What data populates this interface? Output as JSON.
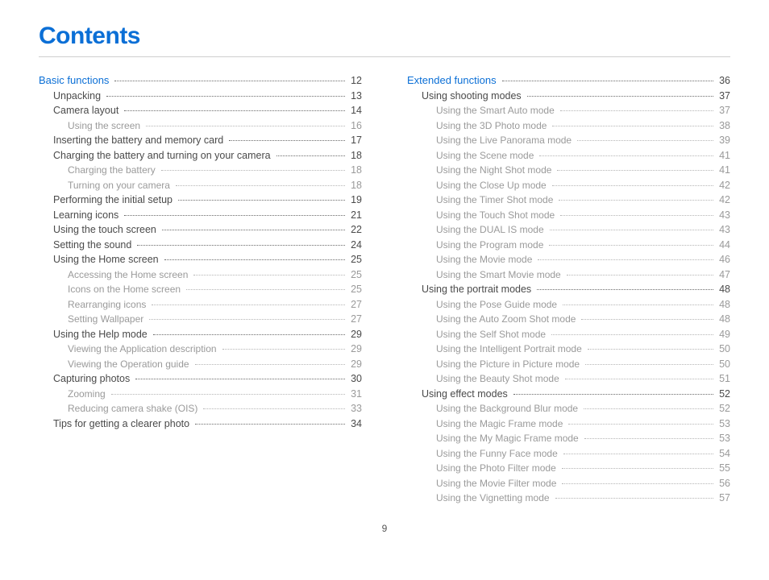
{
  "page": {
    "title": "Contents",
    "page_number": "9",
    "title_color": "#0b6fd6",
    "text_color": "#4a4a4a",
    "sub_color": "#9a9a9a"
  },
  "columns": [
    [
      {
        "label": "Basic functions",
        "page": "12",
        "level": 1
      },
      {
        "label": "Unpacking",
        "page": "13",
        "level": 2
      },
      {
        "label": "Camera layout",
        "page": "14",
        "level": 2
      },
      {
        "label": "Using the screen",
        "page": "16",
        "level": 3
      },
      {
        "label": "Inserting the battery and memory card",
        "page": "17",
        "level": 2
      },
      {
        "label": "Charging the battery and turning on your camera",
        "page": "18",
        "level": 2
      },
      {
        "label": "Charging the battery",
        "page": "18",
        "level": 3
      },
      {
        "label": "Turning on your camera",
        "page": "18",
        "level": 3
      },
      {
        "label": "Performing the initial setup",
        "page": "19",
        "level": 2
      },
      {
        "label": "Learning icons",
        "page": "21",
        "level": 2
      },
      {
        "label": "Using the touch screen",
        "page": "22",
        "level": 2
      },
      {
        "label": "Setting the sound",
        "page": "24",
        "level": 2
      },
      {
        "label": "Using the Home screen",
        "page": "25",
        "level": 2
      },
      {
        "label": "Accessing the Home screen",
        "page": "25",
        "level": 3
      },
      {
        "label": "Icons on the Home screen",
        "page": "25",
        "level": 3
      },
      {
        "label": "Rearranging icons",
        "page": "27",
        "level": 3
      },
      {
        "label": "Setting Wallpaper",
        "page": "27",
        "level": 3
      },
      {
        "label": "Using the Help mode",
        "page": "29",
        "level": 2
      },
      {
        "label": "Viewing the Application description",
        "page": "29",
        "level": 3
      },
      {
        "label": "Viewing the Operation guide",
        "page": "29",
        "level": 3
      },
      {
        "label": "Capturing photos",
        "page": "30",
        "level": 2
      },
      {
        "label": "Zooming",
        "page": "31",
        "level": 3
      },
      {
        "label": "Reducing camera shake (OIS)",
        "page": "33",
        "level": 3
      },
      {
        "label": "Tips for getting a clearer photo",
        "page": "34",
        "level": 2
      }
    ],
    [
      {
        "label": "Extended functions",
        "page": "36",
        "level": 1
      },
      {
        "label": "Using shooting modes",
        "page": "37",
        "level": 2
      },
      {
        "label": "Using the Smart Auto mode",
        "page": "37",
        "level": 3
      },
      {
        "label": "Using the 3D Photo mode",
        "page": "38",
        "level": 3
      },
      {
        "label": "Using the Live Panorama mode",
        "page": "39",
        "level": 3
      },
      {
        "label": "Using the Scene mode",
        "page": "41",
        "level": 3
      },
      {
        "label": "Using the Night Shot mode",
        "page": "41",
        "level": 3
      },
      {
        "label": "Using the Close Up mode",
        "page": "42",
        "level": 3
      },
      {
        "label": "Using the Timer Shot mode",
        "page": "42",
        "level": 3
      },
      {
        "label": "Using the Touch Shot mode",
        "page": "43",
        "level": 3
      },
      {
        "label": "Using the DUAL IS mode",
        "page": "43",
        "level": 3
      },
      {
        "label": "Using the Program mode",
        "page": "44",
        "level": 3
      },
      {
        "label": "Using the Movie mode",
        "page": "46",
        "level": 3
      },
      {
        "label": "Using the Smart Movie mode",
        "page": "47",
        "level": 3
      },
      {
        "label": "Using the portrait modes",
        "page": "48",
        "level": 2
      },
      {
        "label": "Using the Pose Guide mode",
        "page": "48",
        "level": 3
      },
      {
        "label": "Using the Auto Zoom Shot mode",
        "page": "48",
        "level": 3
      },
      {
        "label": "Using the Self Shot mode",
        "page": "49",
        "level": 3
      },
      {
        "label": "Using the Intelligent Portrait mode",
        "page": "50",
        "level": 3
      },
      {
        "label": "Using the Picture in Picture mode",
        "page": "50",
        "level": 3
      },
      {
        "label": "Using the Beauty Shot mode",
        "page": "51",
        "level": 3
      },
      {
        "label": "Using effect modes",
        "page": "52",
        "level": 2
      },
      {
        "label": "Using the Background Blur mode",
        "page": "52",
        "level": 3
      },
      {
        "label": "Using the Magic Frame mode",
        "page": "53",
        "level": 3
      },
      {
        "label": "Using the My Magic Frame mode",
        "page": "53",
        "level": 3
      },
      {
        "label": "Using the Funny Face mode",
        "page": "54",
        "level": 3
      },
      {
        "label": "Using the Photo Filter mode",
        "page": "55",
        "level": 3
      },
      {
        "label": "Using the Movie Filter mode",
        "page": "56",
        "level": 3
      },
      {
        "label": "Using the Vignetting mode",
        "page": "57",
        "level": 3
      }
    ]
  ]
}
